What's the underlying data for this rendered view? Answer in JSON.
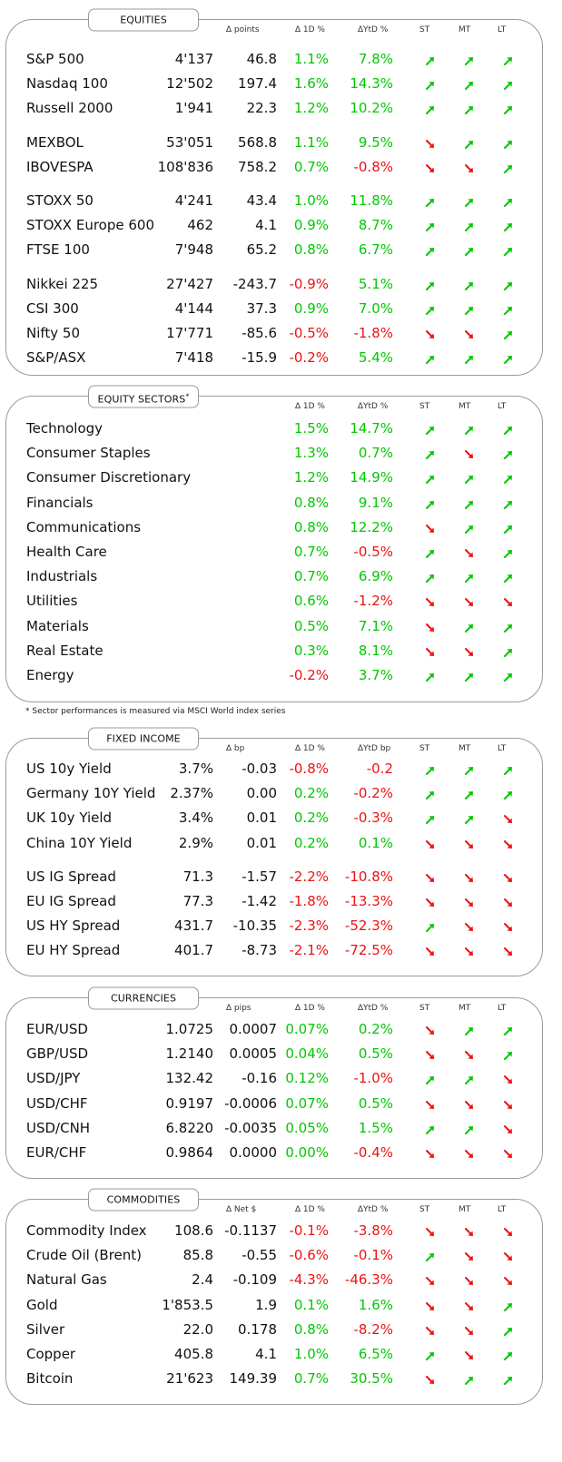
{
  "colors": {
    "up": "#00c800",
    "down": "#ee1111",
    "border": "#9a9a9a"
  },
  "icons": {
    "up": "trend-up-arrow-icon",
    "down": "trend-down-arrow-icon"
  },
  "footnote": "* Sector performances is measured via MSCI World index series",
  "sections": [
    {
      "id": "equities",
      "title": "EQUITIES",
      "title_sup": "",
      "headers": [
        "∆ points",
        "∆ 1D %",
        "∆YtD %",
        "ST",
        "MT",
        "LT"
      ],
      "rows": [
        {
          "name": "S&P 500",
          "level": "4'137",
          "chg": "46.8",
          "d1": "1.1%",
          "ytd": "7.8%",
          "st": "up",
          "mt": "up",
          "lt": "up"
        },
        {
          "name": "Nasdaq 100",
          "level": "12'502",
          "chg": "197.4",
          "d1": "1.6%",
          "ytd": "14.3%",
          "st": "up",
          "mt": "up",
          "lt": "up"
        },
        {
          "name": "Russell 2000",
          "level": "1'941",
          "chg": "22.3",
          "d1": "1.2%",
          "ytd": "10.2%",
          "st": "up",
          "mt": "up",
          "lt": "up"
        },
        {
          "name": "MEXBOL",
          "level": "53'051",
          "chg": "568.8",
          "d1": "1.1%",
          "ytd": "9.5%",
          "st": "down",
          "mt": "up",
          "lt": "up"
        },
        {
          "name": "IBOVESPA",
          "level": "108'836",
          "chg": "758.2",
          "d1": "0.7%",
          "ytd": "-0.8%",
          "st": "down",
          "mt": "down",
          "lt": "up"
        },
        {
          "name": "STOXX 50",
          "level": "4'241",
          "chg": "43.4",
          "d1": "1.0%",
          "ytd": "11.8%",
          "st": "up",
          "mt": "up",
          "lt": "up"
        },
        {
          "name": "STOXX Europe 600",
          "level": "462",
          "chg": "4.1",
          "d1": "0.9%",
          "ytd": "8.7%",
          "st": "up",
          "mt": "up",
          "lt": "up"
        },
        {
          "name": "FTSE 100",
          "level": "7'948",
          "chg": "65.2",
          "d1": "0.8%",
          "ytd": "6.7%",
          "st": "up",
          "mt": "up",
          "lt": "up"
        },
        {
          "name": "Nikkei 225",
          "level": "27'427",
          "chg": "-243.7",
          "d1": "-0.9%",
          "ytd": "5.1%",
          "st": "up",
          "mt": "up",
          "lt": "up"
        },
        {
          "name": "CSI 300",
          "level": "4'144",
          "chg": "37.3",
          "d1": "0.9%",
          "ytd": "7.0%",
          "st": "up",
          "mt": "up",
          "lt": "up"
        },
        {
          "name": "Nifty  50",
          "level": "17'771",
          "chg": "-85.6",
          "d1": "-0.5%",
          "ytd": "-1.8%",
          "st": "down",
          "mt": "down",
          "lt": "up"
        },
        {
          "name": "S&P/ASX",
          "level": "7'418",
          "chg": "-15.9",
          "d1": "-0.2%",
          "ytd": "5.4%",
          "st": "up",
          "mt": "up",
          "lt": "up"
        }
      ]
    },
    {
      "id": "sectors",
      "title": "EQUITY  SECTORS",
      "title_sup": "*",
      "headers": [
        "",
        "∆ 1D %",
        "∆YtD %",
        "ST",
        "MT",
        "LT"
      ],
      "rows": [
        {
          "name": "Technology",
          "level": "",
          "chg": "",
          "d1": "1.5%",
          "ytd": "14.7%",
          "st": "up",
          "mt": "up",
          "lt": "up"
        },
        {
          "name": "Consumer Staples",
          "level": "",
          "chg": "",
          "d1": "1.3%",
          "ytd": "0.7%",
          "st": "up",
          "mt": "down",
          "lt": "up"
        },
        {
          "name": "Consumer Discretionary",
          "level": "",
          "chg": "",
          "d1": "1.2%",
          "ytd": "14.9%",
          "st": "up",
          "mt": "up",
          "lt": "up"
        },
        {
          "name": "Financials",
          "level": "",
          "chg": "",
          "d1": "0.8%",
          "ytd": "9.1%",
          "st": "up",
          "mt": "up",
          "lt": "up"
        },
        {
          "name": "Communications",
          "level": "",
          "chg": "",
          "d1": "0.8%",
          "ytd": "12.2%",
          "st": "down",
          "mt": "up",
          "lt": "up"
        },
        {
          "name": "Health Care",
          "level": "",
          "chg": "",
          "d1": "0.7%",
          "ytd": "-0.5%",
          "st": "up",
          "mt": "down",
          "lt": "up"
        },
        {
          "name": "Industrials",
          "level": "",
          "chg": "",
          "d1": "0.7%",
          "ytd": "6.9%",
          "st": "up",
          "mt": "up",
          "lt": "up"
        },
        {
          "name": "Utilities",
          "level": "",
          "chg": "",
          "d1": "0.6%",
          "ytd": "-1.2%",
          "st": "down",
          "mt": "down",
          "lt": "down"
        },
        {
          "name": "Materials",
          "level": "",
          "chg": "",
          "d1": "0.5%",
          "ytd": "7.1%",
          "st": "down",
          "mt": "up",
          "lt": "up"
        },
        {
          "name": "Real Estate",
          "level": "",
          "chg": "",
          "d1": "0.3%",
          "ytd": "8.1%",
          "st": "down",
          "mt": "down",
          "lt": "up"
        },
        {
          "name": "Energy",
          "level": "",
          "chg": "",
          "d1": "-0.2%",
          "ytd": "3.7%",
          "st": "up",
          "mt": "up",
          "lt": "up"
        }
      ]
    },
    {
      "id": "fixed-income",
      "title": "FIXED  INCOME",
      "title_sup": "",
      "headers": [
        "∆ bp",
        "∆ 1D %",
        "∆YtD bp",
        "ST",
        "MT",
        "LT"
      ],
      "rows": [
        {
          "name": "US 10y Yield",
          "level": "3.7%",
          "chg": "-0.03",
          "d1": "-0.8%",
          "ytd": "-0.2",
          "st": "up",
          "mt": "up",
          "lt": "up"
        },
        {
          "name": "Germany 10Y Yield",
          "level": "2.37%",
          "chg": "0.00",
          "d1": "0.2%",
          "ytd": "-0.2%",
          "st": "up",
          "mt": "up",
          "lt": "up"
        },
        {
          "name": "UK 10y Yield",
          "level": "3.4%",
          "chg": "0.01",
          "d1": "0.2%",
          "ytd": "-0.3%",
          "st": "up",
          "mt": "up",
          "lt": "down"
        },
        {
          "name": "China 10Y Yield",
          "level": "2.9%",
          "chg": "0.01",
          "d1": "0.2%",
          "ytd": "0.1%",
          "st": "down",
          "mt": "down",
          "lt": "down"
        },
        {
          "name": "US IG Spread",
          "level": "71.3",
          "chg": "-1.57",
          "d1": "-2.2%",
          "ytd": "-10.8%",
          "st": "down",
          "mt": "down",
          "lt": "down"
        },
        {
          "name": "EU IG Spread",
          "level": "77.3",
          "chg": "-1.42",
          "d1": "-1.8%",
          "ytd": "-13.3%",
          "st": "down",
          "mt": "down",
          "lt": "down"
        },
        {
          "name": "US HY Spread",
          "level": "431.7",
          "chg": "-10.35",
          "d1": "-2.3%",
          "ytd": "-52.3%",
          "st": "up",
          "mt": "down",
          "lt": "down"
        },
        {
          "name": "EU HY Spread",
          "level": "401.7",
          "chg": "-8.73",
          "d1": "-2.1%",
          "ytd": "-72.5%",
          "st": "down",
          "mt": "down",
          "lt": "down"
        }
      ]
    },
    {
      "id": "currencies",
      "title": "CURRENCIES",
      "title_sup": "",
      "headers": [
        "∆ pips",
        "∆ 1D %",
        "∆YtD %",
        "ST",
        "MT",
        "LT"
      ],
      "rows": [
        {
          "name": "EUR/USD",
          "level": "1.0725",
          "chg": "0.0007",
          "d1": "0.07%",
          "ytd": "0.2%",
          "st": "down",
          "mt": "up",
          "lt": "up"
        },
        {
          "name": "GBP/USD",
          "level": "1.2140",
          "chg": "0.0005",
          "d1": "0.04%",
          "ytd": "0.5%",
          "st": "down",
          "mt": "down",
          "lt": "up"
        },
        {
          "name": "USD/JPY",
          "level": "132.42",
          "chg": "-0.16",
          "d1": "0.12%",
          "ytd": "-1.0%",
          "st": "up",
          "mt": "up",
          "lt": "down"
        },
        {
          "name": "USD/CHF",
          "level": "0.9197",
          "chg": "-0.0006",
          "d1": "0.07%",
          "ytd": "0.5%",
          "st": "down",
          "mt": "down",
          "lt": "down"
        },
        {
          "name": "USD/CNH",
          "level": "6.8220",
          "chg": "-0.0035",
          "d1": "0.05%",
          "ytd": "1.5%",
          "st": "up",
          "mt": "up",
          "lt": "down"
        },
        {
          "name": "EUR/CHF",
          "level": "0.9864",
          "chg": "0.0000",
          "d1": "0.00%",
          "ytd": "-0.4%",
          "st": "down",
          "mt": "down",
          "lt": "down"
        }
      ]
    },
    {
      "id": "commodities",
      "title": "COMMODITIES",
      "title_sup": "",
      "headers": [
        "∆ Net $",
        "∆ 1D %",
        "∆YtD %",
        "ST",
        "MT",
        "LT"
      ],
      "rows": [
        {
          "name": "Commodity Index",
          "level": "108.6",
          "chg": "-0.1137",
          "d1": "-0.1%",
          "ytd": "-3.8%",
          "st": "down",
          "mt": "down",
          "lt": "down"
        },
        {
          "name": "Crude Oil (Brent)",
          "level": "85.8",
          "chg": "-0.55",
          "d1": "-0.6%",
          "ytd": "-0.1%",
          "st": "up",
          "mt": "down",
          "lt": "down"
        },
        {
          "name": "Natural Gas",
          "level": "2.4",
          "chg": "-0.109",
          "d1": "-4.3%",
          "ytd": "-46.3%",
          "st": "down",
          "mt": "down",
          "lt": "down"
        },
        {
          "name": "Gold",
          "level": "1'853.5",
          "chg": "1.9",
          "d1": "0.1%",
          "ytd": "1.6%",
          "st": "down",
          "mt": "down",
          "lt": "up"
        },
        {
          "name": "Silver",
          "level": "22.0",
          "chg": "0.178",
          "d1": "0.8%",
          "ytd": "-8.2%",
          "st": "down",
          "mt": "down",
          "lt": "up"
        },
        {
          "name": "Copper",
          "level": "405.8",
          "chg": "4.1",
          "d1": "1.0%",
          "ytd": "6.5%",
          "st": "up",
          "mt": "down",
          "lt": "up"
        },
        {
          "name": "Bitcoin",
          "level": "21'623",
          "chg": "149.39",
          "d1": "0.7%",
          "ytd": "30.5%",
          "st": "down",
          "mt": "up",
          "lt": "up"
        }
      ]
    }
  ]
}
